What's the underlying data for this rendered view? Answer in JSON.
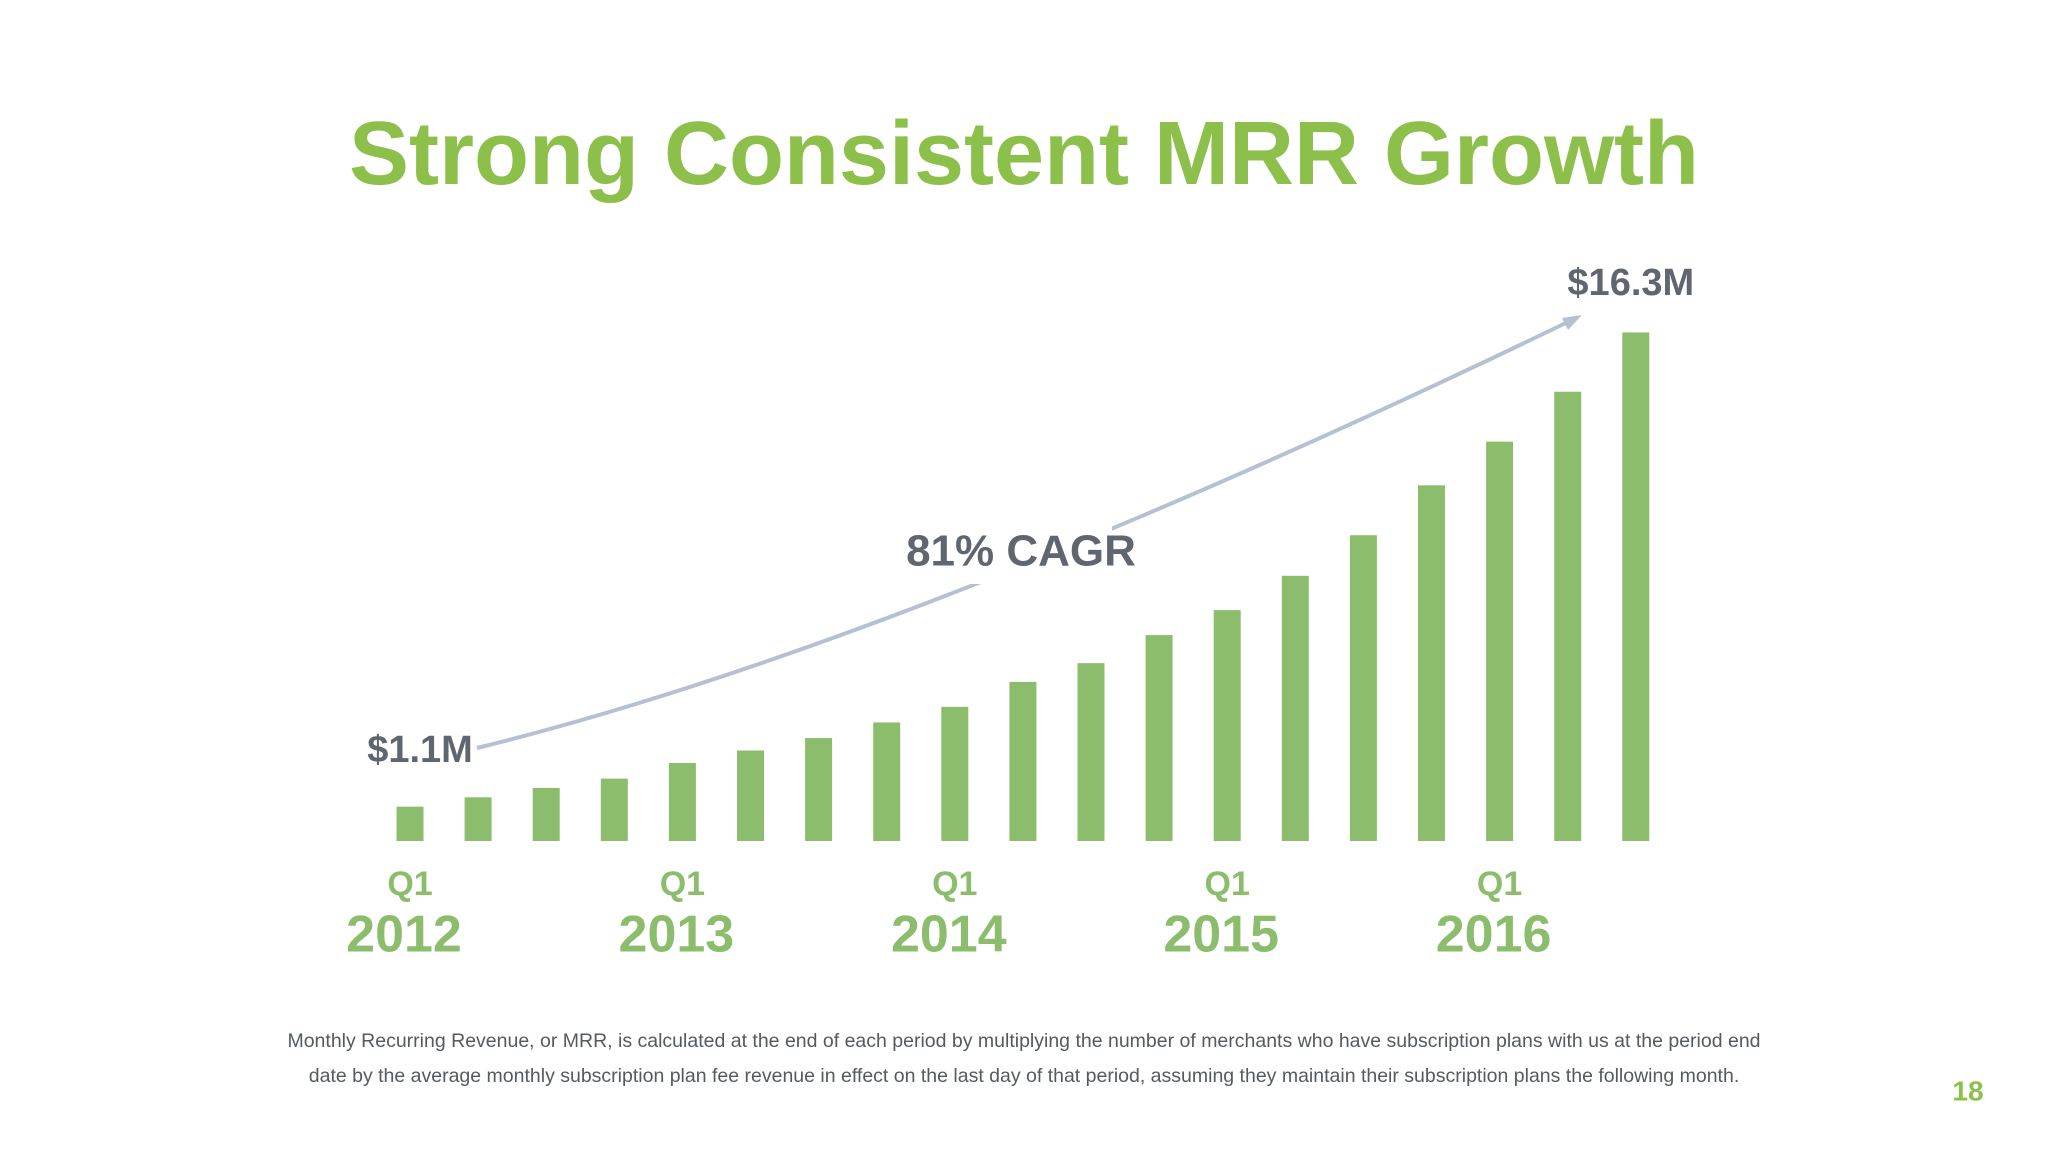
{
  "chart_data": {
    "type": "bar",
    "title": "Strong Consistent MRR Growth",
    "categories": [
      {
        "quarter": "Q1",
        "year": "2012"
      },
      null,
      null,
      null,
      {
        "quarter": "Q1",
        "year": "2013"
      },
      null,
      null,
      null,
      {
        "quarter": "Q1",
        "year": "2014"
      },
      null,
      null,
      null,
      {
        "quarter": "Q1",
        "year": "2015"
      },
      null,
      null,
      null,
      {
        "quarter": "Q1",
        "year": "2016"
      },
      null,
      null
    ],
    "values": [
      1.1,
      1.4,
      1.7,
      2.0,
      2.5,
      2.9,
      3.3,
      3.8,
      4.3,
      5.1,
      5.7,
      6.6,
      7.4,
      8.5,
      9.8,
      11.4,
      12.8,
      14.4,
      16.3
    ],
    "value_labels": [
      "$1.1M",
      null,
      null,
      null,
      null,
      null,
      null,
      null,
      null,
      null,
      null,
      null,
      null,
      null,
      null,
      null,
      null,
      null,
      "$16.3M"
    ],
    "color": "#8bbd6d",
    "annotation": "81% CAGR",
    "footnote": [
      "Monthly Recurring Revenue, or MRR, is calculated at the end of each period by multiplying the number of merchants who have subscription plans with us at the period end",
      "date by the average monthly subscription plan fee revenue in effect on the last day of that period, assuming they maintain their subscription plans the following month."
    ],
    "page_number": "18"
  }
}
